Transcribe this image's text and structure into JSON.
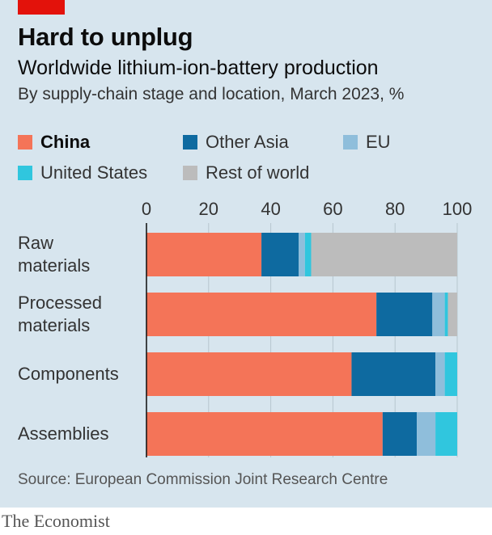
{
  "title": "Hard to unplug",
  "subtitle": "Worldwide lithium-ion-battery production",
  "description": "By supply-chain stage and location, March 2023, %",
  "source": "Source: European Commission Joint Research Centre",
  "brand": "The Economist",
  "colors": {
    "China": "#f47458",
    "Other Asia": "#0e6aa0",
    "EU": "#8fbedb",
    "United States": "#30c6de",
    "Rest of world": "#bcbcbc",
    "accent": "#e3120b"
  },
  "chart_data": {
    "type": "bar",
    "orientation": "horizontal",
    "stacked": true,
    "categories": [
      "Raw\nmaterials",
      "Processed\nmaterials",
      "Components",
      "Assemblies"
    ],
    "series": [
      {
        "name": "China",
        "values": [
          37,
          74,
          66,
          76
        ]
      },
      {
        "name": "Other Asia",
        "values": [
          12,
          18,
          27,
          11
        ]
      },
      {
        "name": "EU",
        "values": [
          2,
          4,
          3,
          6
        ]
      },
      {
        "name": "United States",
        "values": [
          2,
          1,
          4,
          7
        ]
      },
      {
        "name": "Rest of world",
        "values": [
          47,
          3,
          0,
          0
        ]
      }
    ],
    "xlim": [
      0,
      100
    ],
    "xticks": [
      0,
      20,
      40,
      60,
      80,
      100
    ],
    "grid": true,
    "legend_position": "top"
  }
}
